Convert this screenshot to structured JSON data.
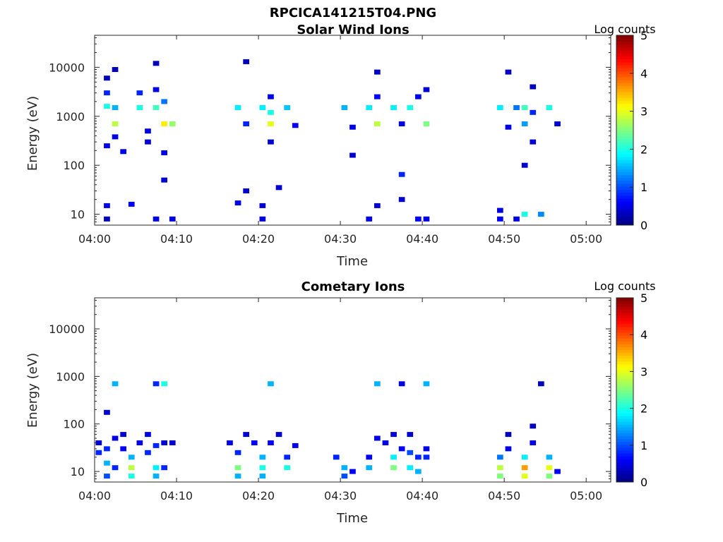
{
  "figure_title": "RPCICA141215T04.PNG",
  "colormap": [
    "#00007f",
    "#0000ff",
    "#007fff",
    "#00ffff",
    "#7fff7f",
    "#ffff00",
    "#ff7f00",
    "#ff0000",
    "#7f0000"
  ],
  "chart_data": [
    {
      "type": "heatmap",
      "title": "Solar Wind Ions",
      "xlabel": "Time",
      "ylabel": "Energy (eV)",
      "xscale": "time",
      "yscale": "log",
      "xlim": [
        "04:00",
        "05:03"
      ],
      "ylim": [
        6,
        45000
      ],
      "xticks": [
        "04:00",
        "04:10",
        "04:20",
        "04:30",
        "04:40",
        "04:50",
        "05:00"
      ],
      "yticks": [
        10,
        100,
        1000,
        10000
      ],
      "ytick_labels": [
        "10",
        "100",
        "1000",
        "10000"
      ],
      "colorbar": {
        "label": "Log counts",
        "range": [
          0,
          5
        ],
        "ticks": [
          "0",
          "1",
          "2",
          "3",
          "4",
          "5"
        ]
      },
      "cells": [
        [
          "04:01",
          15,
          0.5
        ],
        [
          "04:01",
          8,
          0.3
        ],
        [
          "04:01",
          1600,
          2.0
        ],
        [
          "04:01",
          3000,
          0.8
        ],
        [
          "04:01",
          6000,
          0.3
        ],
        [
          "04:01",
          250,
          0.5
        ],
        [
          "04:02",
          700,
          2.8
        ],
        [
          "04:02",
          1500,
          1.5
        ],
        [
          "04:02",
          9000,
          0.3
        ],
        [
          "04:02",
          380,
          0.5
        ],
        [
          "04:03",
          190,
          0.5
        ],
        [
          "04:04",
          16,
          0.6
        ],
        [
          "04:05",
          1500,
          2.0
        ],
        [
          "04:05",
          3000,
          0.8
        ],
        [
          "04:06",
          500,
          0.5
        ],
        [
          "04:06",
          300,
          0.4
        ],
        [
          "04:07",
          8,
          0.5
        ],
        [
          "04:07",
          1500,
          2.2
        ],
        [
          "04:07",
          3500,
          0.5
        ],
        [
          "04:07",
          12000,
          0.3
        ],
        [
          "04:08",
          700,
          3.2
        ],
        [
          "04:08",
          2000,
          1.2
        ],
        [
          "04:08",
          180,
          0.5
        ],
        [
          "04:08",
          50,
          0.4
        ],
        [
          "04:09",
          8,
          0.5
        ],
        [
          "04:09",
          700,
          2.6
        ],
        [
          "04:17",
          1500,
          1.8
        ],
        [
          "04:17",
          17,
          0.5
        ],
        [
          "04:18",
          700,
          0.8
        ],
        [
          "04:18",
          13000,
          0.3
        ],
        [
          "04:18",
          30,
          0.4
        ],
        [
          "04:20",
          1500,
          1.8
        ],
        [
          "04:20",
          8,
          0.5
        ],
        [
          "04:20",
          15,
          0.4
        ],
        [
          "04:21",
          700,
          3.0
        ],
        [
          "04:21",
          1200,
          2.0
        ],
        [
          "04:21",
          2500,
          0.5
        ],
        [
          "04:21",
          300,
          0.4
        ],
        [
          "04:22",
          35,
          0.4
        ],
        [
          "04:23",
          1500,
          1.6
        ],
        [
          "04:24",
          650,
          0.6
        ],
        [
          "04:30",
          1500,
          1.5
        ],
        [
          "04:31",
          600,
          0.5
        ],
        [
          "04:31",
          160,
          0.4
        ],
        [
          "04:33",
          8,
          0.5
        ],
        [
          "04:33",
          1500,
          1.8
        ],
        [
          "04:34",
          700,
          2.8
        ],
        [
          "04:34",
          2500,
          0.6
        ],
        [
          "04:34",
          8000,
          0.3
        ],
        [
          "04:34",
          15,
          0.4
        ],
        [
          "04:36",
          1500,
          1.8
        ],
        [
          "04:37",
          20,
          0.4
        ],
        [
          "04:37",
          65,
          0.8
        ],
        [
          "04:37",
          700,
          0.5
        ],
        [
          "04:38",
          1500,
          2.0
        ],
        [
          "04:39",
          8,
          0.6
        ],
        [
          "04:39",
          2500,
          0.5
        ],
        [
          "04:40",
          700,
          2.5
        ],
        [
          "04:40",
          8,
          0.5
        ],
        [
          "04:40",
          3500,
          0.4
        ],
        [
          "04:49",
          8,
          0.6
        ],
        [
          "04:49",
          1500,
          1.8
        ],
        [
          "04:49",
          12,
          0.5
        ],
        [
          "04:50",
          600,
          0.5
        ],
        [
          "04:50",
          8000,
          0.3
        ],
        [
          "04:51",
          1500,
          1.2
        ],
        [
          "04:51",
          8,
          0.5
        ],
        [
          "04:52",
          10,
          2.0
        ],
        [
          "04:52",
          1500,
          2.2
        ],
        [
          "04:52",
          700,
          1.4
        ],
        [
          "04:52",
          100,
          0.4
        ],
        [
          "04:53",
          1200,
          0.8
        ],
        [
          "04:53",
          4000,
          0.3
        ],
        [
          "04:53",
          300,
          0.4
        ],
        [
          "04:54",
          10,
          1.3
        ],
        [
          "04:55",
          1500,
          2.0
        ],
        [
          "04:56",
          700,
          0.4
        ]
      ]
    },
    {
      "type": "heatmap",
      "title": "Cometary Ions",
      "xlabel": "Time",
      "ylabel": "Energy (eV)",
      "xscale": "time",
      "yscale": "log",
      "xlim": [
        "04:00",
        "05:03"
      ],
      "ylim": [
        6,
        45000
      ],
      "xticks": [
        "04:00",
        "04:10",
        "04:20",
        "04:30",
        "04:40",
        "04:50",
        "05:00"
      ],
      "yticks": [
        10,
        100,
        1000,
        10000
      ],
      "ytick_labels": [
        "10",
        "100",
        "1000",
        "10000"
      ],
      "colorbar": {
        "label": "Log counts",
        "range": [
          0,
          5
        ],
        "ticks": [
          "0",
          "1",
          "2",
          "3",
          "4",
          "5"
        ]
      },
      "cells": [
        [
          "04:00",
          25,
          0.8
        ],
        [
          "04:00",
          40,
          0.4
        ],
        [
          "04:01",
          15,
          1.5
        ],
        [
          "04:01",
          8,
          1.0
        ],
        [
          "04:01",
          30,
          0.8
        ],
        [
          "04:01",
          175,
          0.4
        ],
        [
          "04:02",
          700,
          1.5
        ],
        [
          "04:02",
          12,
          0.8
        ],
        [
          "04:02",
          50,
          0.5
        ],
        [
          "04:03",
          30,
          0.6
        ],
        [
          "04:03",
          60,
          0.4
        ],
        [
          "04:04",
          12,
          2.8
        ],
        [
          "04:04",
          8,
          2.0
        ],
        [
          "04:04",
          20,
          1.5
        ],
        [
          "04:05",
          40,
          0.5
        ],
        [
          "04:06",
          25,
          0.8
        ],
        [
          "04:06",
          60,
          0.5
        ],
        [
          "04:07",
          12,
          1.8
        ],
        [
          "04:07",
          8,
          1.5
        ],
        [
          "04:07",
          35,
          0.8
        ],
        [
          "04:07",
          700,
          0.8
        ],
        [
          "04:08",
          12,
          0.8
        ],
        [
          "04:08",
          700,
          2.0
        ],
        [
          "04:08",
          40,
          0.4
        ],
        [
          "04:09",
          40,
          0.4
        ],
        [
          "04:16",
          40,
          0.5
        ],
        [
          "04:17",
          12,
          2.5
        ],
        [
          "04:17",
          8,
          1.5
        ],
        [
          "04:17",
          25,
          0.8
        ],
        [
          "04:18",
          60,
          0.4
        ],
        [
          "04:19",
          40,
          0.6
        ],
        [
          "04:20",
          12,
          2.0
        ],
        [
          "04:20",
          20,
          1.5
        ],
        [
          "04:20",
          8,
          1.5
        ],
        [
          "04:21",
          700,
          1.5
        ],
        [
          "04:21",
          40,
          0.6
        ],
        [
          "04:22",
          60,
          0.4
        ],
        [
          "04:23",
          20,
          0.8
        ],
        [
          "04:23",
          12,
          2.0
        ],
        [
          "04:24",
          35,
          0.5
        ],
        [
          "04:29",
          20,
          0.8
        ],
        [
          "04:30",
          12,
          1.5
        ],
        [
          "04:30",
          8,
          1.0
        ],
        [
          "04:31",
          10,
          0.6
        ],
        [
          "04:33",
          20,
          0.6
        ],
        [
          "04:33",
          12,
          1.5
        ],
        [
          "04:34",
          700,
          1.5
        ],
        [
          "04:34",
          50,
          0.5
        ],
        [
          "04:35",
          40,
          0.5
        ],
        [
          "04:36",
          12,
          2.5
        ],
        [
          "04:36",
          20,
          1.8
        ],
        [
          "04:36",
          60,
          0.4
        ],
        [
          "04:37",
          30,
          0.6
        ],
        [
          "04:37",
          700,
          0.5
        ],
        [
          "04:38",
          12,
          1.8
        ],
        [
          "04:38",
          25,
          1.0
        ],
        [
          "04:38",
          60,
          0.4
        ],
        [
          "04:39",
          20,
          0.8
        ],
        [
          "04:39",
          10,
          1.5
        ],
        [
          "04:40",
          700,
          1.5
        ],
        [
          "04:40",
          20,
          0.8
        ],
        [
          "04:40",
          30,
          0.5
        ],
        [
          "04:49",
          12,
          2.8
        ],
        [
          "04:49",
          8,
          2.5
        ],
        [
          "04:49",
          20,
          1.2
        ],
        [
          "04:50",
          30,
          0.5
        ],
        [
          "04:50",
          60,
          0.3
        ],
        [
          "04:52",
          12,
          3.6
        ],
        [
          "04:52",
          8,
          3.0
        ],
        [
          "04:52",
          20,
          1.8
        ],
        [
          "04:53",
          40,
          0.5
        ],
        [
          "04:53",
          90,
          0.3
        ],
        [
          "04:54",
          700,
          0.3
        ],
        [
          "04:55",
          12,
          3.0
        ],
        [
          "04:55",
          8,
          2.5
        ],
        [
          "04:55",
          20,
          1.5
        ],
        [
          "04:56",
          10,
          0.6
        ]
      ]
    }
  ]
}
